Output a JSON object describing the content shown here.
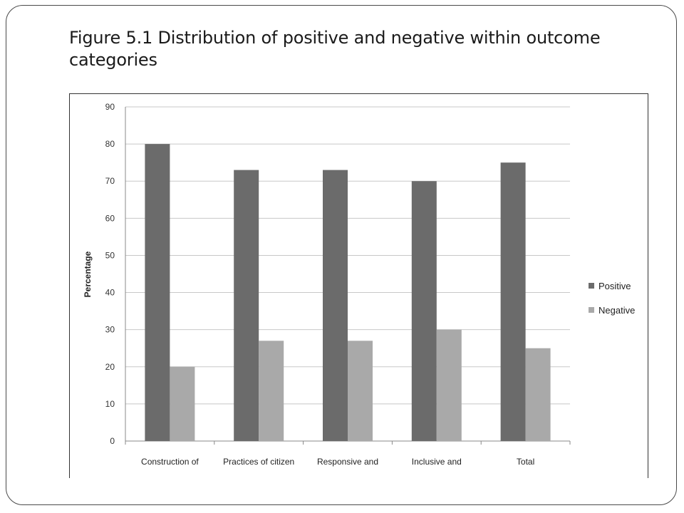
{
  "page": {
    "title": "Figure 5.1 Distribution of positive and negative within outcome categories"
  },
  "colors": {
    "positive": "#6b6b6b",
    "negative": "#a9a9a9",
    "grid": "#c8c8c8"
  },
  "chart_data": {
    "type": "bar",
    "title": "Figure 5.1 Distribution of positive and negative within outcome categories",
    "xlabel": "",
    "ylabel": "Percentage",
    "ylim": [
      0,
      90
    ],
    "yticks": [
      "0",
      "10",
      "20",
      "30",
      "40",
      "50",
      "60",
      "70",
      "80",
      "90"
    ],
    "grid": true,
    "legend_position": "right",
    "categories": [
      "Construction of",
      "Practices of citizen",
      "Responsive and",
      "Inclusive and",
      "Total"
    ],
    "series": [
      {
        "name": "Positive",
        "values": [
          80,
          73,
          73,
          70,
          75
        ]
      },
      {
        "name": "Negative",
        "values": [
          20,
          27,
          27,
          30,
          25
        ]
      }
    ]
  }
}
